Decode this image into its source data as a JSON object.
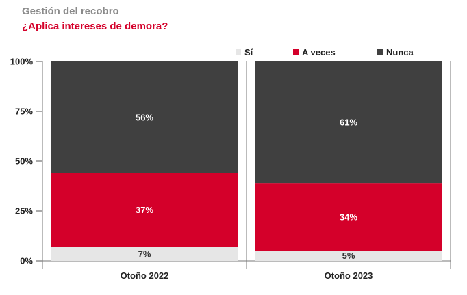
{
  "header": {
    "supertitle": "Gestión del recobro",
    "title": "¿Aplica intereses de demora?"
  },
  "chart_data": {
    "type": "bar",
    "stacked": true,
    "categories": [
      "Otoño 2022",
      "Otoño 2023"
    ],
    "series": [
      {
        "name": "Sí",
        "values": [
          7,
          5
        ],
        "color": "#e6e6e6",
        "label_color": "#333333"
      },
      {
        "name": "A veces",
        "values": [
          37,
          34
        ],
        "color": "#d4002a",
        "label_color": "#ffffff"
      },
      {
        "name": "Nunca",
        "values": [
          56,
          61
        ],
        "color": "#404040",
        "label_color": "#ffffff"
      }
    ],
    "ylim": [
      0,
      100
    ],
    "yticks": [
      0,
      25,
      50,
      75,
      100
    ],
    "ytick_labels": [
      "0%",
      "25%",
      "50%",
      "75%",
      "100%"
    ],
    "value_suffix": "%",
    "grid": false,
    "legend_position": "top-right"
  }
}
